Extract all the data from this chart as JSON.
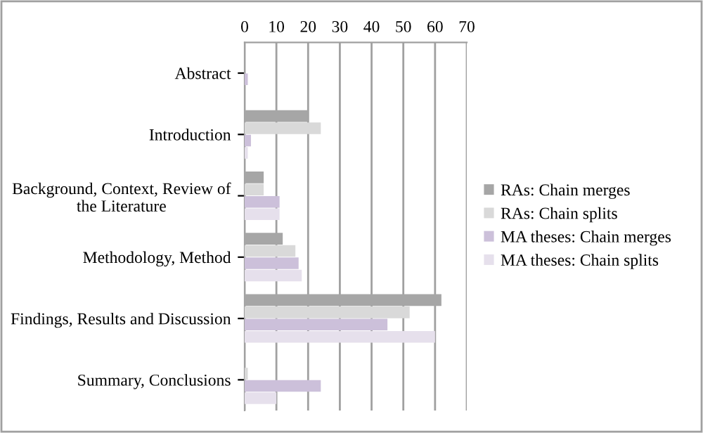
{
  "chart_data": {
    "type": "bar",
    "orientation": "horizontal",
    "categories": [
      "Abstract",
      "Introduction",
      "Background, Context, Review of\nthe Literature",
      "Methodology, Method",
      "Findings, Results and Discussion",
      "Summary, Conclusions"
    ],
    "series": [
      {
        "name": "RAs: Chain merges",
        "color": "#a6a6a6",
        "values": [
          0,
          20,
          6,
          12,
          62,
          0
        ]
      },
      {
        "name": "RAs: Chain splits",
        "color": "#d9d9d9",
        "values": [
          0,
          24,
          6,
          16,
          52,
          1
        ]
      },
      {
        "name": "MA theses: Chain merges",
        "color": "#ccc0da",
        "values": [
          1,
          2,
          11,
          17,
          45,
          24
        ]
      },
      {
        "name": "MA theses: Chain splits",
        "color": "#e6e0ec",
        "values": [
          0,
          1,
          11,
          18,
          60,
          10
        ]
      }
    ],
    "xlim": [
      0,
      70
    ],
    "xticks": [
      0,
      10,
      20,
      30,
      40,
      50,
      60,
      70
    ],
    "grid": "x",
    "legend": "right"
  }
}
